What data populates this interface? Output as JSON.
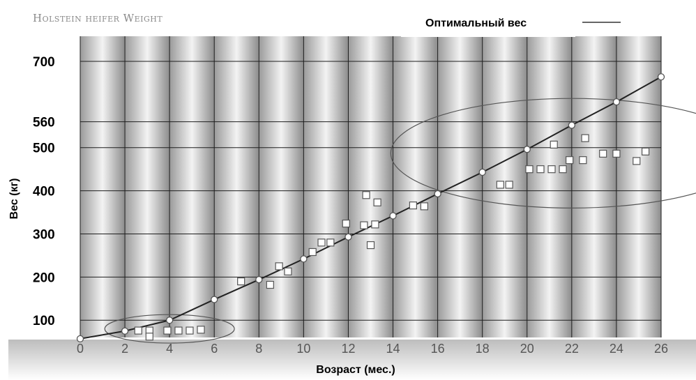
{
  "chart_data": {
    "type": "line",
    "title": "Holstein heifer Weight",
    "xlabel": "Возраст (мес.)",
    "ylabel": "Вес (кг)",
    "x_ticks": [
      0,
      2,
      4,
      6,
      8,
      10,
      12,
      14,
      16,
      18,
      20,
      22,
      24,
      26
    ],
    "y_ticks": [
      100,
      200,
      300,
      400,
      500,
      560,
      700
    ],
    "xlim": [
      0,
      26
    ],
    "legend": {
      "label": "Оптимальный вес",
      "position": "top-right"
    },
    "grid": true,
    "series": [
      {
        "name": "Оптимальный вес",
        "kind": "line",
        "points": [
          [
            0,
            57
          ],
          [
            2,
            75
          ],
          [
            4,
            100
          ],
          [
            6,
            148
          ],
          [
            8,
            194
          ],
          [
            10,
            242
          ],
          [
            12,
            293
          ],
          [
            14,
            342
          ],
          [
            16,
            393
          ],
          [
            18,
            443
          ],
          [
            20,
            496
          ],
          [
            22,
            552
          ],
          [
            24,
            606
          ],
          [
            26,
            664
          ]
        ]
      },
      {
        "kind": "scatter",
        "points": [
          [
            2.6,
            76
          ],
          [
            3.1,
            76
          ],
          [
            3.1,
            62
          ],
          [
            3.9,
            76
          ],
          [
            4.4,
            76
          ],
          [
            4.9,
            76
          ],
          [
            5.4,
            78
          ],
          [
            7.2,
            190
          ],
          [
            8.5,
            182
          ],
          [
            8.9,
            225
          ],
          [
            9.3,
            213
          ],
          [
            10.4,
            258
          ],
          [
            10.8,
            280
          ],
          [
            11.2,
            280
          ],
          [
            11.9,
            324
          ],
          [
            12.7,
            320
          ],
          [
            12.8,
            390
          ],
          [
            13.0,
            274
          ],
          [
            13.2,
            322
          ],
          [
            13.3,
            373
          ],
          [
            14.9,
            366
          ],
          [
            15.4,
            364
          ],
          [
            18.8,
            414
          ],
          [
            19.2,
            414
          ],
          [
            20.1,
            450
          ],
          [
            20.6,
            450
          ],
          [
            21.1,
            450
          ],
          [
            21.2,
            507
          ],
          [
            21.6,
            450
          ],
          [
            21.9,
            471
          ],
          [
            22.5,
            471
          ],
          [
            22.6,
            522
          ],
          [
            23.4,
            486
          ],
          [
            24.0,
            486
          ],
          [
            24.9,
            469
          ],
          [
            25.3,
            491
          ]
        ]
      }
    ],
    "ellipses": [
      {
        "center": [
          4.0,
          80
        ],
        "radius": [
          2.9,
          33
        ]
      },
      {
        "center": [
          22.0,
          487
        ],
        "radius": [
          8.1,
          127
        ]
      }
    ]
  }
}
